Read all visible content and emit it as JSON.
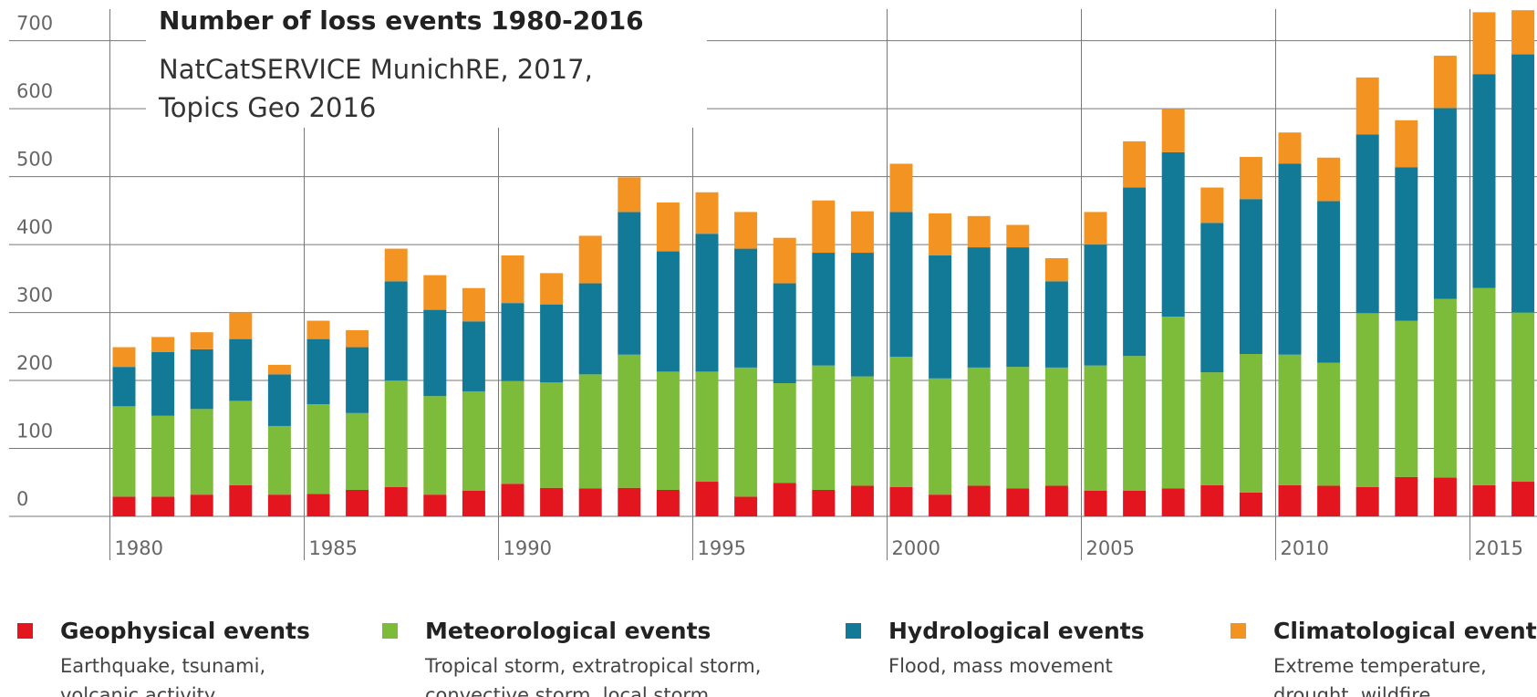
{
  "chart_data": {
    "type": "stacked_bar",
    "title": "Number of loss events 1980-2016",
    "subtitle": [
      "NatCatSERVICE MunichRE, 2017,",
      "Topics Geo 2016"
    ],
    "categories": [
      "1980",
      null,
      null,
      null,
      null,
      "1985",
      null,
      null,
      null,
      null,
      "1990",
      null,
      null,
      null,
      null,
      "1995",
      null,
      null,
      null,
      null,
      "2000",
      null,
      null,
      null,
      null,
      "2005",
      null,
      null,
      null,
      null,
      "2010",
      null,
      null,
      null,
      null,
      "2015",
      null
    ],
    "series": [
      {
        "name": "Geophysical events",
        "description": [
          "Earthquake, tsunami,",
          "volcanic activity"
        ],
        "color": "#e3161f",
        "values": [
          29,
          29,
          32,
          46,
          32,
          33,
          39,
          43,
          32,
          38,
          48,
          42,
          41,
          42,
          39,
          51,
          29,
          49,
          39,
          45,
          43,
          32,
          45,
          41,
          45,
          38,
          38,
          41,
          46,
          35,
          46,
          45,
          43,
          58,
          57,
          46,
          51
        ]
      },
      {
        "name": "Meteorological events",
        "description": [
          "Tropical storm, extratropical storm,",
          "convective storm, local storm"
        ],
        "color": "#7dbb3a",
        "values": [
          133,
          119,
          126,
          124,
          101,
          132,
          113,
          157,
          145,
          146,
          151,
          155,
          168,
          196,
          174,
          162,
          190,
          147,
          183,
          161,
          192,
          171,
          174,
          179,
          174,
          184,
          198,
          253,
          166,
          204,
          192,
          181,
          256,
          230,
          263,
          290,
          249
        ]
      },
      {
        "name": "Hydrological events",
        "description": [
          "Flood, mass movement"
        ],
        "color": "#127a96",
        "values": [
          58,
          94,
          88,
          91,
          76,
          96,
          97,
          146,
          127,
          103,
          115,
          115,
          134,
          210,
          177,
          203,
          175,
          147,
          166,
          182,
          213,
          181,
          177,
          176,
          127,
          178,
          248,
          242,
          220,
          228,
          281,
          238,
          263,
          226,
          281,
          315,
          380
        ]
      },
      {
        "name": "Climatological events",
        "description": [
          "Extreme temperature,",
          "drought, wildfire"
        ],
        "color": "#f39321",
        "values": [
          29,
          22,
          25,
          39,
          14,
          27,
          25,
          48,
          51,
          49,
          70,
          46,
          70,
          51,
          72,
          61,
          54,
          67,
          77,
          61,
          71,
          62,
          46,
          33,
          34,
          48,
          68,
          64,
          52,
          62,
          46,
          64,
          84,
          69,
          77,
          91,
          65
        ]
      }
    ],
    "ylim": [
      0,
      760
    ],
    "yticks": [
      0,
      100,
      200,
      300,
      400,
      500,
      600,
      700
    ],
    "grid": true
  }
}
